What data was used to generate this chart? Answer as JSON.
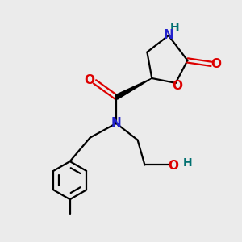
{
  "bg_color": "#ebebeb",
  "atom_colors": {
    "C": "#000000",
    "N": "#2222cc",
    "O": "#dd0000",
    "H": "#007070"
  },
  "bond_lw": 1.6,
  "font_size_atom": 11,
  "font_size_h": 10
}
